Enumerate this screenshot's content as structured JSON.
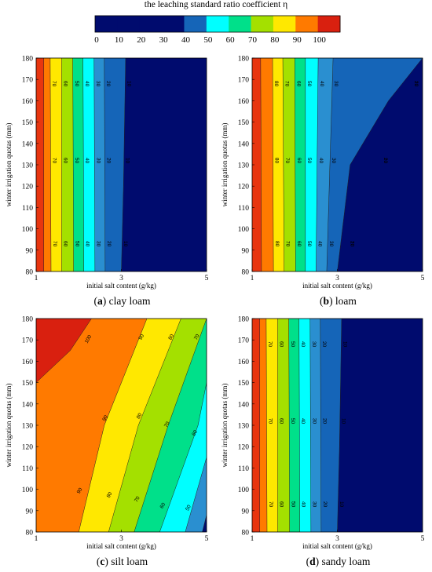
{
  "colorbar": {
    "title": "the leaching standard ratio coefficient η",
    "levels": [
      0,
      10,
      20,
      30,
      40,
      50,
      60,
      70,
      80,
      90,
      100
    ],
    "colors": [
      "#000066",
      "#000e73",
      "#0a2b8f",
      "#1f4fa8",
      "#2a6fb5",
      "#00ffff",
      "#00e08a",
      "#a4e000",
      "#ffe800",
      "#ff7a00",
      "#d9200f"
    ]
  },
  "chart_data": [
    {
      "type": "heatmap",
      "label_letter": "(a)",
      "label_text": "clay loam",
      "xlabel": "initial salt content (g/kg)",
      "ylabel": "winter irrigation quotas (mm)",
      "xlim": [
        1,
        5
      ],
      "ylim": [
        80,
        180
      ],
      "xticks": [
        "1",
        "3",
        "5"
      ],
      "yticks": [
        "80",
        "90",
        "100",
        "110",
        "120",
        "130",
        "140",
        "150",
        "160",
        "170",
        "180"
      ],
      "boundaries": [
        {
          "level": 100,
          "x_at": [
            [
              80,
              1.18
            ],
            [
              180,
              1.18
            ]
          ]
        },
        {
          "level": 90,
          "x_at": [
            [
              80,
              1.35
            ],
            [
              180,
              1.33
            ]
          ]
        },
        {
          "level": 80,
          "x_at": [
            [
              80,
              1.6
            ],
            [
              180,
              1.6
            ]
          ]
        },
        {
          "level": 70,
          "x_at": [
            [
              80,
              1.88
            ],
            [
              180,
              1.86
            ]
          ]
        },
        {
          "level": 60,
          "x_at": [
            [
              80,
              2.12
            ],
            [
              180,
              2.1
            ]
          ]
        },
        {
          "level": 50,
          "x_at": [
            [
              80,
              2.38
            ],
            [
              180,
              2.36
            ]
          ]
        },
        {
          "level": 40,
          "x_at": [
            [
              80,
              2.62
            ],
            [
              180,
              2.6
            ]
          ]
        },
        {
          "level": 20,
          "x_at": [
            [
              80,
              3.0
            ],
            [
              120,
              3.05
            ],
            [
              180,
              3.1
            ]
          ]
        }
      ],
      "contour_labels": [
        "70",
        "60",
        "50",
        "40",
        "30",
        "20",
        "10"
      ]
    },
    {
      "type": "heatmap",
      "label_letter": "(b)",
      "label_text": "loam",
      "xlabel": "initial salt content (g/kg)",
      "ylabel": "winter irrigation quotas (mm)",
      "xlim": [
        1,
        5
      ],
      "ylim": [
        80,
        180
      ],
      "xticks": [
        "1",
        "3",
        "5"
      ],
      "yticks": [
        "80",
        "90",
        "100",
        "110",
        "120",
        "130",
        "140",
        "150",
        "160",
        "170",
        "180"
      ],
      "boundaries": [
        {
          "level": 100,
          "x_at": [
            [
              80,
              1.22
            ],
            [
              180,
              1.2
            ]
          ]
        },
        {
          "level": 90,
          "x_at": [
            [
              80,
              1.5
            ],
            [
              180,
              1.48
            ]
          ]
        },
        {
          "level": 80,
          "x_at": [
            [
              80,
              1.75
            ],
            [
              180,
              1.72
            ]
          ]
        },
        {
          "level": 70,
          "x_at": [
            [
              80,
              2.02
            ],
            [
              180,
              2.0
            ]
          ]
        },
        {
          "level": 60,
          "x_at": [
            [
              80,
              2.25
            ],
            [
              180,
              2.25
            ]
          ]
        },
        {
          "level": 50,
          "x_at": [
            [
              80,
              2.5
            ],
            [
              180,
              2.55
            ]
          ]
        },
        {
          "level": 40,
          "x_at": [
            [
              80,
              2.75
            ],
            [
              180,
              2.9
            ]
          ]
        },
        {
          "level": 20,
          "x_at": [
            [
              80,
              3.0
            ],
            [
              130,
              3.3
            ],
            [
              160,
              4.2
            ],
            [
              180,
              5.0
            ]
          ]
        }
      ],
      "contour_labels": [
        "80",
        "70",
        "60",
        "50",
        "40",
        "30",
        "20",
        "10"
      ]
    },
    {
      "type": "heatmap",
      "label_letter": "(c)",
      "label_text": "silt loam",
      "xlabel": "initial salt content (g/kg)",
      "ylabel": "winter irrigation quotas (mm)",
      "xlim": [
        1,
        5
      ],
      "ylim": [
        80,
        180
      ],
      "xticks": [
        "1",
        "3",
        "5"
      ],
      "yticks": [
        "80",
        "90",
        "100",
        "110",
        "120",
        "130",
        "140",
        "150",
        "160",
        "170",
        "180"
      ],
      "boundaries": [
        {
          "level": 100,
          "x_at": [
            [
              150,
              1.0
            ],
            [
              165,
              1.8
            ],
            [
              180,
              2.3
            ]
          ]
        },
        {
          "level": 90,
          "x_at": [
            [
              80,
              2.0
            ],
            [
              130,
              2.6
            ],
            [
              180,
              3.6
            ]
          ]
        },
        {
          "level": 80,
          "x_at": [
            [
              80,
              2.7
            ],
            [
              130,
              3.4
            ],
            [
              180,
              4.4
            ]
          ]
        },
        {
          "level": 70,
          "x_at": [
            [
              80,
              3.3
            ],
            [
              130,
              4.1
            ],
            [
              180,
              5.0
            ]
          ]
        },
        {
          "level": 60,
          "x_at": [
            [
              80,
              3.9
            ],
            [
              130,
              4.8
            ],
            [
              150,
              5.0
            ]
          ]
        },
        {
          "level": 50,
          "x_at": [
            [
              80,
              4.5
            ],
            [
              115,
              5.0
            ]
          ]
        },
        {
          "level": 40,
          "x_at": [
            [
              80,
              4.9
            ],
            [
              88,
              5.0
            ]
          ]
        }
      ],
      "contour_labels": [
        "100",
        "90",
        "80",
        "70",
        "60",
        "90",
        "80",
        "70",
        "60",
        "90",
        "80",
        "70",
        "60",
        "50"
      ]
    },
    {
      "type": "heatmap",
      "label_letter": "(d)",
      "label_text": "sandy loam",
      "xlabel": "initial salt content (g/kg)",
      "ylabel": "winter irrigation quotas (mm)",
      "xlim": [
        1,
        5
      ],
      "ylim": [
        80,
        180
      ],
      "xticks": [
        "1",
        "3",
        "5"
      ],
      "yticks": [
        "80",
        "90",
        "100",
        "110",
        "120",
        "130",
        "140",
        "150",
        "160",
        "170",
        "180"
      ],
      "boundaries": [
        {
          "level": 100,
          "x_at": [
            [
              80,
              1.18
            ],
            [
              180,
              1.18
            ]
          ]
        },
        {
          "level": 90,
          "x_at": [
            [
              80,
              1.35
            ],
            [
              180,
              1.33
            ]
          ]
        },
        {
          "level": 80,
          "x_at": [
            [
              80,
              1.6
            ],
            [
              180,
              1.6
            ]
          ]
        },
        {
          "level": 70,
          "x_at": [
            [
              80,
              1.88
            ],
            [
              180,
              1.86
            ]
          ]
        },
        {
          "level": 60,
          "x_at": [
            [
              80,
              2.12
            ],
            [
              180,
              2.1
            ]
          ]
        },
        {
          "level": 50,
          "x_at": [
            [
              80,
              2.38
            ],
            [
              180,
              2.36
            ]
          ]
        },
        {
          "level": 40,
          "x_at": [
            [
              80,
              2.62
            ],
            [
              180,
              2.6
            ]
          ]
        },
        {
          "level": 20,
          "x_at": [
            [
              80,
              3.0
            ],
            [
              120,
              3.05
            ],
            [
              180,
              3.1
            ]
          ]
        }
      ],
      "contour_labels": [
        "70",
        "60",
        "50",
        "40",
        "30",
        "20",
        "10"
      ]
    }
  ]
}
